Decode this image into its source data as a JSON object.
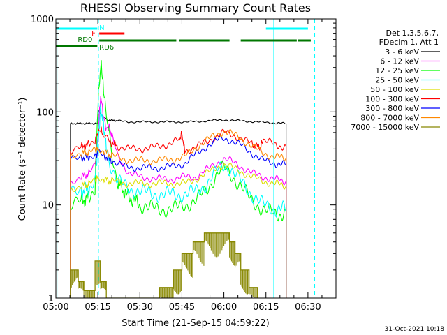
{
  "chart_data": {
    "type": "line",
    "title": "RHESSI Observing Summary Count Rates",
    "xlabel": "Start Time (21-Sep-15 04:59:22)",
    "ylabel": "Count Rate (s⁻¹ detector⁻¹)",
    "xlim": [
      0,
      100
    ],
    "ylim": [
      1,
      1000
    ],
    "yscale": "log",
    "x_ticks": [
      {
        "t": 0,
        "label": "05:00"
      },
      {
        "t": 15,
        "label": "05:15"
      },
      {
        "t": 30,
        "label": "05:30"
      },
      {
        "t": 45,
        "label": "05:45"
      },
      {
        "t": 60,
        "label": "06:00"
      },
      {
        "t": 75,
        "label": "06:15"
      },
      {
        "t": 90,
        "label": "06:30"
      }
    ],
    "y_ticks": [
      {
        "v": 1,
        "label": "1"
      },
      {
        "v": 10,
        "label": "10"
      },
      {
        "v": 100,
        "label": "100"
      },
      {
        "v": 1000,
        "label": "1000"
      }
    ],
    "legend_header": [
      "Det 1,3,5,6,7,",
      "FDecim 1, Att 1"
    ],
    "series": [
      {
        "name": "3 - 6 keV",
        "color": "#000000",
        "points": [
          [
            5.2,
            0.1
          ],
          [
            5.2,
            75
          ],
          [
            15,
            75
          ],
          [
            15.2,
            105
          ],
          [
            17,
            88
          ],
          [
            19,
            82
          ],
          [
            22,
            80
          ],
          [
            26,
            78
          ],
          [
            30,
            78
          ],
          [
            36,
            78
          ],
          [
            42,
            78
          ],
          [
            48,
            78
          ],
          [
            54,
            80
          ],
          [
            60,
            82
          ],
          [
            66,
            80
          ],
          [
            72,
            78
          ],
          [
            78,
            76
          ],
          [
            82.2,
            75
          ],
          [
            82.2,
            0.1
          ]
        ]
      },
      {
        "name": "6 - 12 keV",
        "color": "#ff00ff",
        "points": [
          [
            5.2,
            0.1
          ],
          [
            5.2,
            18
          ],
          [
            9,
            20
          ],
          [
            12,
            22
          ],
          [
            14,
            27
          ],
          [
            15,
            55
          ],
          [
            16,
            150
          ],
          [
            17,
            90
          ],
          [
            18,
            65
          ],
          [
            19,
            70
          ],
          [
            20,
            55
          ],
          [
            22,
            34
          ],
          [
            26,
            22
          ],
          [
            30,
            20
          ],
          [
            36,
            19
          ],
          [
            42,
            19
          ],
          [
            46,
            20
          ],
          [
            50,
            20
          ],
          [
            54,
            24
          ],
          [
            58,
            29
          ],
          [
            60,
            31
          ],
          [
            62,
            30
          ],
          [
            66,
            26
          ],
          [
            70,
            22
          ],
          [
            74,
            20
          ],
          [
            78,
            19
          ],
          [
            82.2,
            18
          ],
          [
            82.2,
            0.1
          ]
        ]
      },
      {
        "name": "12 - 25 keV",
        "color": "#00ff00",
        "points": [
          [
            5.2,
            0.1
          ],
          [
            5.2,
            10
          ],
          [
            9,
            11
          ],
          [
            12,
            12
          ],
          [
            14,
            16
          ],
          [
            15,
            120
          ],
          [
            16,
            320
          ],
          [
            16.8,
            230
          ],
          [
            18,
            90
          ],
          [
            20,
            35
          ],
          [
            22,
            18
          ],
          [
            25,
            13
          ],
          [
            30,
            10
          ],
          [
            36,
            9
          ],
          [
            42,
            9
          ],
          [
            46,
            10
          ],
          [
            50,
            11
          ],
          [
            54,
            15
          ],
          [
            58,
            22
          ],
          [
            60,
            25
          ],
          [
            62,
            22
          ],
          [
            66,
            16
          ],
          [
            70,
            11
          ],
          [
            74,
            9
          ],
          [
            78,
            8
          ],
          [
            82.2,
            8
          ],
          [
            82.2,
            0.1
          ]
        ]
      },
      {
        "name": "25 - 50 keV",
        "color": "#00ffff",
        "points": [
          [
            5.2,
            0.1
          ],
          [
            5.2,
            13
          ],
          [
            9,
            14
          ],
          [
            12,
            15
          ],
          [
            14,
            18
          ],
          [
            15,
            45
          ],
          [
            16,
            110
          ],
          [
            17,
            75
          ],
          [
            18,
            40
          ],
          [
            20,
            25
          ],
          [
            22,
            18
          ],
          [
            26,
            15
          ],
          [
            30,
            14
          ],
          [
            36,
            13
          ],
          [
            42,
            13
          ],
          [
            46,
            13
          ],
          [
            50,
            14
          ],
          [
            54,
            17
          ],
          [
            58,
            24
          ],
          [
            60,
            27
          ],
          [
            62,
            25
          ],
          [
            66,
            18
          ],
          [
            70,
            13
          ],
          [
            74,
            10
          ],
          [
            78,
            9
          ],
          [
            82.2,
            9
          ],
          [
            82.2,
            0.1
          ]
        ]
      },
      {
        "name": "50 - 100 keV",
        "color": "#dddd00",
        "points": [
          [
            5.2,
            0.1
          ],
          [
            5.2,
            15
          ],
          [
            9,
            16
          ],
          [
            12,
            17
          ],
          [
            14,
            18
          ],
          [
            15,
            20
          ],
          [
            17,
            19
          ],
          [
            20,
            18
          ],
          [
            26,
            17
          ],
          [
            30,
            17
          ],
          [
            36,
            17
          ],
          [
            42,
            17
          ],
          [
            46,
            17
          ],
          [
            50,
            19
          ],
          [
            54,
            22
          ],
          [
            58,
            26
          ],
          [
            60,
            27
          ],
          [
            62,
            26
          ],
          [
            66,
            23
          ],
          [
            70,
            20
          ],
          [
            74,
            18
          ],
          [
            78,
            17
          ],
          [
            82.2,
            16
          ],
          [
            82.2,
            0.1
          ]
        ]
      },
      {
        "name": "100 - 300 keV",
        "color": "#ff0000",
        "points": [
          [
            5.2,
            0.1
          ],
          [
            5.2,
            38
          ],
          [
            9,
            42
          ],
          [
            12,
            45
          ],
          [
            14,
            50
          ],
          [
            15,
            60
          ],
          [
            16,
            65
          ],
          [
            17,
            55
          ],
          [
            19,
            48
          ],
          [
            22,
            43
          ],
          [
            26,
            40
          ],
          [
            30,
            40
          ],
          [
            36,
            42
          ],
          [
            40,
            45
          ],
          [
            44,
            50
          ],
          [
            45,
            58
          ],
          [
            46,
            38
          ],
          [
            50,
            42
          ],
          [
            54,
            48
          ],
          [
            58,
            56
          ],
          [
            60,
            60
          ],
          [
            62,
            58
          ],
          [
            66,
            52
          ],
          [
            70,
            45
          ],
          [
            73,
            42
          ],
          [
            74,
            50
          ],
          [
            76,
            48
          ],
          [
            78,
            44
          ],
          [
            82.2,
            42
          ],
          [
            82.2,
            0.1
          ]
        ]
      },
      {
        "name": "300 - 800 keV",
        "color": "#0000ff",
        "points": [
          [
            5.2,
            0.1
          ],
          [
            5.2,
            30
          ],
          [
            9,
            32
          ],
          [
            12,
            33
          ],
          [
            14,
            34
          ],
          [
            15,
            36
          ],
          [
            17,
            34
          ],
          [
            20,
            30
          ],
          [
            24,
            26
          ],
          [
            30,
            25
          ],
          [
            36,
            25
          ],
          [
            42,
            26
          ],
          [
            46,
            28
          ],
          [
            50,
            35
          ],
          [
            54,
            43
          ],
          [
            58,
            50
          ],
          [
            60,
            52
          ],
          [
            62,
            50
          ],
          [
            66,
            44
          ],
          [
            70,
            36
          ],
          [
            74,
            30
          ],
          [
            78,
            28
          ],
          [
            82.2,
            27
          ],
          [
            82.2,
            0.1
          ]
        ]
      },
      {
        "name": "800 - 7000 keV",
        "color": "#ff8800",
        "points": [
          [
            5.2,
            0.1
          ],
          [
            5.2,
            34
          ],
          [
            9,
            36
          ],
          [
            12,
            37
          ],
          [
            14,
            38
          ],
          [
            15,
            40
          ],
          [
            17,
            38
          ],
          [
            20,
            34
          ],
          [
            24,
            31
          ],
          [
            30,
            30
          ],
          [
            36,
            30
          ],
          [
            42,
            31
          ],
          [
            46,
            33
          ],
          [
            50,
            41
          ],
          [
            54,
            50
          ],
          [
            58,
            58
          ],
          [
            60,
            62
          ],
          [
            62,
            60
          ],
          [
            66,
            52
          ],
          [
            70,
            43
          ],
          [
            74,
            36
          ],
          [
            78,
            33
          ],
          [
            82.2,
            32
          ],
          [
            82.2,
            0.1
          ]
        ]
      },
      {
        "name": "7000 - 15000 keV",
        "color": "#888800",
        "points": [
          [
            5.2,
            0.1
          ],
          [
            5.2,
            2
          ],
          [
            8,
            2
          ],
          [
            8,
            1.5
          ],
          [
            10,
            1.5
          ],
          [
            10,
            1.2
          ],
          [
            14,
            1.2
          ],
          [
            14,
            2.5
          ],
          [
            16,
            2.5
          ],
          [
            16,
            1.5
          ],
          [
            18,
            1.5
          ],
          [
            18,
            0.1
          ],
          [
            37,
            0.1
          ],
          [
            37,
            1.3
          ],
          [
            42,
            1.3
          ],
          [
            42,
            2
          ],
          [
            45,
            2
          ],
          [
            45,
            3
          ],
          [
            49,
            3
          ],
          [
            49,
            4
          ],
          [
            53,
            4
          ],
          [
            53,
            5
          ],
          [
            62,
            5
          ],
          [
            62,
            4
          ],
          [
            64,
            4
          ],
          [
            64,
            3
          ],
          [
            66,
            3
          ],
          [
            66,
            2
          ],
          [
            69,
            2
          ],
          [
            69,
            1.3
          ],
          [
            72,
            1.3
          ],
          [
            72,
            0.1
          ]
        ]
      }
    ],
    "flags": {
      "saa": {
        "label": "",
        "color": "#00ffff",
        "segments": [
          [
            0,
            14.8
          ],
          [
            75,
            90
          ]
        ]
      },
      "night": {
        "label": "N",
        "color": "#00ffff",
        "t": 15.5
      },
      "flare": {
        "label": "F",
        "color": "#ff0000",
        "segments": [
          [
            15.5,
            24.5
          ]
        ]
      },
      "rd0": {
        "label": "RD0",
        "color": "#007700",
        "segments": [
          [
            0,
            14.8
          ]
        ]
      },
      "rd6": {
        "label": "RD6",
        "color": "#007700",
        "segments": [
          [
            15.5,
            43
          ],
          [
            44,
            62
          ],
          [
            66,
            86
          ],
          [
            86.5,
            91
          ]
        ]
      }
    },
    "vlines": [
      {
        "t": 0.4,
        "color": "#00ffff",
        "style": "solid"
      },
      {
        "t": 15.2,
        "color": "#00ffff",
        "style": "dashed"
      },
      {
        "t": 77.8,
        "color": "#00ffff",
        "style": "solid"
      },
      {
        "t": 92.4,
        "color": "#00ffff",
        "style": "dashed"
      }
    ]
  },
  "footer": {
    "date": "31-Oct-2021 10:18"
  }
}
